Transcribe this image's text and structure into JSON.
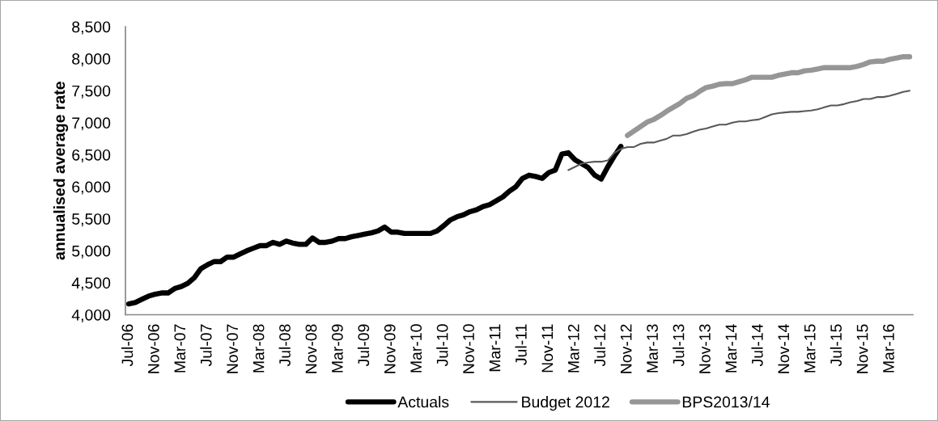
{
  "chart_data": {
    "type": "line",
    "ylabel": "annualised average rate",
    "categories": [
      "Jul-06",
      null,
      null,
      null,
      "Nov-06",
      null,
      null,
      null,
      "Mar-07",
      null,
      null,
      null,
      "Jul-07",
      null,
      null,
      null,
      "Nov-07",
      null,
      null,
      null,
      "Mar-08",
      null,
      null,
      null,
      "Jul-08",
      null,
      null,
      null,
      "Nov-08",
      null,
      null,
      null,
      "Mar-09",
      null,
      null,
      null,
      "Jul-09",
      null,
      null,
      null,
      "Nov-09",
      null,
      null,
      null,
      "Mar-10",
      null,
      null,
      null,
      "Jul-10",
      null,
      null,
      null,
      "Nov-10",
      null,
      null,
      null,
      "Mar-11",
      null,
      null,
      null,
      "Jul-11",
      null,
      null,
      null,
      "Nov-11",
      null,
      null,
      null,
      "Mar-12",
      null,
      null,
      null,
      "Jul-12",
      null,
      null,
      null,
      "Nov-12",
      null,
      null,
      null,
      "Mar-13",
      null,
      null,
      null,
      "Jul-13",
      null,
      null,
      null,
      "Nov-13",
      null,
      null,
      null,
      "Mar-14",
      null,
      null,
      null,
      "Jul-14",
      null,
      null,
      null,
      "Nov-14",
      null,
      null,
      null,
      "Mar-15",
      null,
      null,
      null,
      "Jul-15",
      null,
      null,
      null,
      "Nov-15",
      null,
      null,
      null,
      "Mar-16",
      null,
      null,
      null
    ],
    "series": [
      {
        "name": "Actuals",
        "color": "#000000",
        "values": [
          4170,
          4190,
          4240,
          4290,
          4320,
          4340,
          4340,
          4410,
          4440,
          4490,
          4580,
          4720,
          4780,
          4830,
          4830,
          4900,
          4900,
          4950,
          5000,
          5040,
          5080,
          5080,
          5130,
          5100,
          5150,
          5120,
          5100,
          5100,
          5200,
          5130,
          5130,
          5150,
          5190,
          5190,
          5220,
          5240,
          5260,
          5280,
          5310,
          5370,
          5290,
          5290,
          5270,
          5270,
          5270,
          5270,
          5270,
          5310,
          5390,
          5480,
          5530,
          5560,
          5610,
          5640,
          5690,
          5720,
          5780,
          5840,
          5930,
          6000,
          6130,
          6180,
          6160,
          6130,
          6220,
          6260,
          6510,
          6530,
          6420,
          6360,
          6300,
          6180,
          6120,
          6310,
          6480,
          6630,
          null,
          null,
          null,
          null,
          null,
          null,
          null,
          null,
          null,
          null,
          null,
          null,
          null,
          null,
          null,
          null,
          null,
          null,
          null,
          null,
          null,
          null,
          null,
          null,
          null,
          null,
          null,
          null,
          null,
          null,
          null,
          null,
          null,
          null,
          null,
          null,
          null,
          null,
          null,
          null,
          null,
          null,
          null,
          null
        ]
      },
      {
        "name": "Budget 2012",
        "color": "#595959",
        "values": [
          null,
          null,
          null,
          null,
          null,
          null,
          null,
          null,
          null,
          null,
          null,
          null,
          null,
          null,
          null,
          null,
          null,
          null,
          null,
          null,
          null,
          null,
          null,
          null,
          null,
          null,
          null,
          null,
          null,
          null,
          null,
          null,
          null,
          null,
          null,
          null,
          null,
          null,
          null,
          null,
          null,
          null,
          null,
          null,
          null,
          null,
          null,
          null,
          null,
          null,
          null,
          null,
          null,
          null,
          null,
          null,
          null,
          null,
          null,
          null,
          null,
          null,
          null,
          null,
          null,
          null,
          null,
          6260,
          6310,
          6360,
          6380,
          6390,
          6390,
          6410,
          6530,
          6590,
          6620,
          6620,
          6670,
          6690,
          6690,
          6720,
          6750,
          6800,
          6800,
          6820,
          6860,
          6890,
          6910,
          6940,
          6970,
          6970,
          7000,
          7020,
          7020,
          7040,
          7050,
          7090,
          7130,
          7150,
          7160,
          7170,
          7170,
          7180,
          7190,
          7210,
          7240,
          7270,
          7270,
          7290,
          7320,
          7340,
          7370,
          7370,
          7400,
          7400,
          7420,
          7450,
          7480,
          7500
        ]
      },
      {
        "name": "BPS2013/14",
        "color": "#969696",
        "values": [
          null,
          null,
          null,
          null,
          null,
          null,
          null,
          null,
          null,
          null,
          null,
          null,
          null,
          null,
          null,
          null,
          null,
          null,
          null,
          null,
          null,
          null,
          null,
          null,
          null,
          null,
          null,
          null,
          null,
          null,
          null,
          null,
          null,
          null,
          null,
          null,
          null,
          null,
          null,
          null,
          null,
          null,
          null,
          null,
          null,
          null,
          null,
          null,
          null,
          null,
          null,
          null,
          null,
          null,
          null,
          null,
          null,
          null,
          null,
          null,
          null,
          null,
          null,
          null,
          null,
          null,
          null,
          null,
          null,
          null,
          null,
          null,
          null,
          null,
          null,
          null,
          6800,
          6870,
          6940,
          7010,
          7050,
          7110,
          7180,
          7240,
          7300,
          7380,
          7420,
          7490,
          7550,
          7570,
          7600,
          7610,
          7610,
          7640,
          7670,
          7710,
          7710,
          7710,
          7710,
          7740,
          7760,
          7780,
          7780,
          7810,
          7820,
          7840,
          7860,
          7860,
          7860,
          7860,
          7860,
          7880,
          7910,
          7950,
          7960,
          7960,
          7990,
          8010,
          8030,
          8030
        ]
      }
    ],
    "ylim": [
      4000,
      8500
    ],
    "yticks": [
      {
        "value": 4000,
        "label": "4,000"
      },
      {
        "value": 4500,
        "label": "4,500"
      },
      {
        "value": 5000,
        "label": "5,000"
      },
      {
        "value": 5500,
        "label": "5,500"
      },
      {
        "value": 6000,
        "label": "6,000"
      },
      {
        "value": 6500,
        "label": "6,500"
      },
      {
        "value": 7000,
        "label": "7,000"
      },
      {
        "value": 7500,
        "label": "7,500"
      },
      {
        "value": 8000,
        "label": "8,000"
      },
      {
        "value": 8500,
        "label": "8,500"
      }
    ],
    "legend": "bottom"
  }
}
